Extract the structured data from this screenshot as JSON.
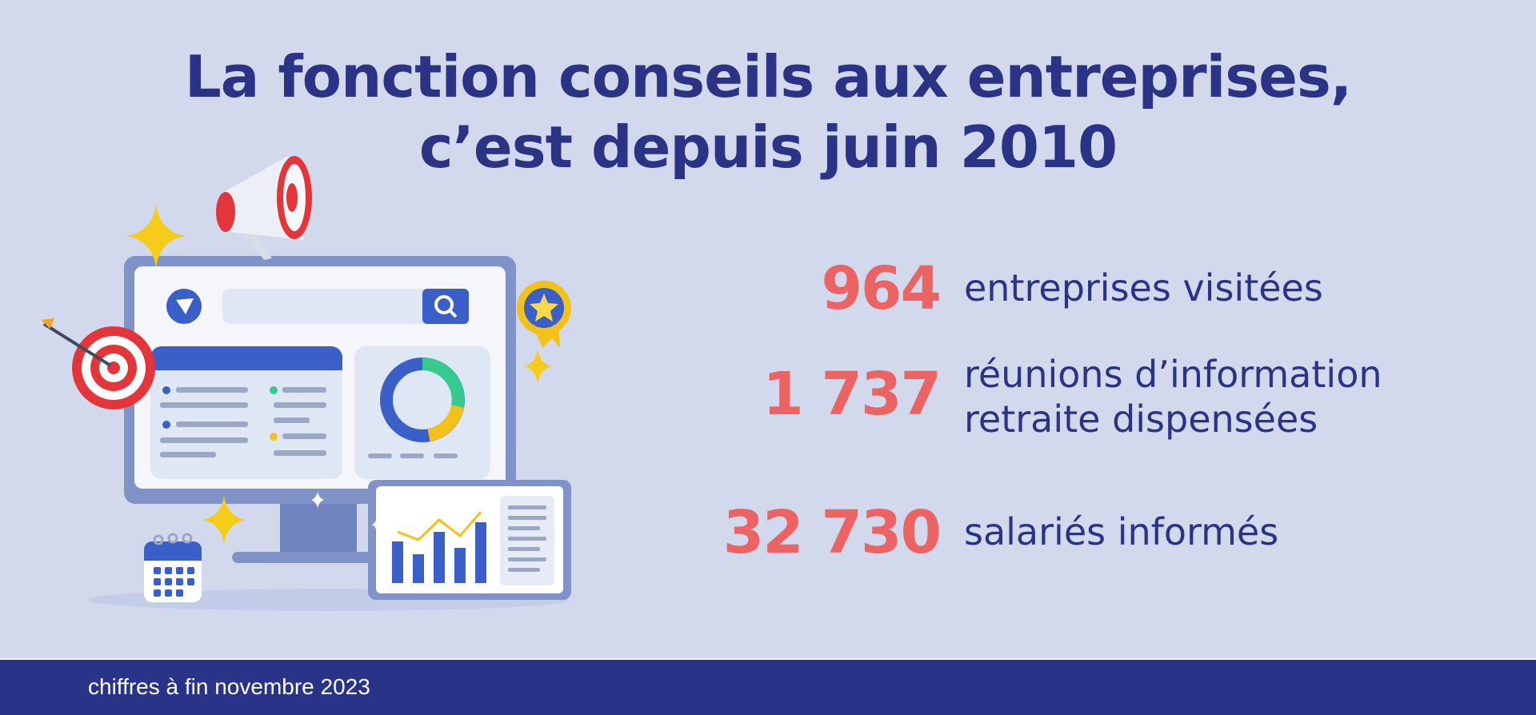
{
  "title": {
    "line1": "La fonction conseils aux entreprises,",
    "line2": "c’est depuis juin 2010"
  },
  "stats": [
    {
      "value": "964",
      "label_line1": "entreprises visitées",
      "label_line2": ""
    },
    {
      "value": "1 737",
      "label_line1": "réunions d’information",
      "label_line2": "retraite dispensées"
    },
    {
      "value": "32 730",
      "label_line1": "salariés informés",
      "label_line2": ""
    }
  ],
  "footer": {
    "note": "chiffres à fin novembre 2023"
  },
  "colors": {
    "background": "#d3d9ec",
    "title": "#2a3385",
    "numbers": "#ec6363",
    "footer": "#293388"
  },
  "illustration": {
    "icons": [
      "monitor-icon",
      "megaphone-icon",
      "target-icon",
      "badge-icon",
      "calendar-icon",
      "tablet-chart-icon",
      "sparkle-icon"
    ]
  }
}
